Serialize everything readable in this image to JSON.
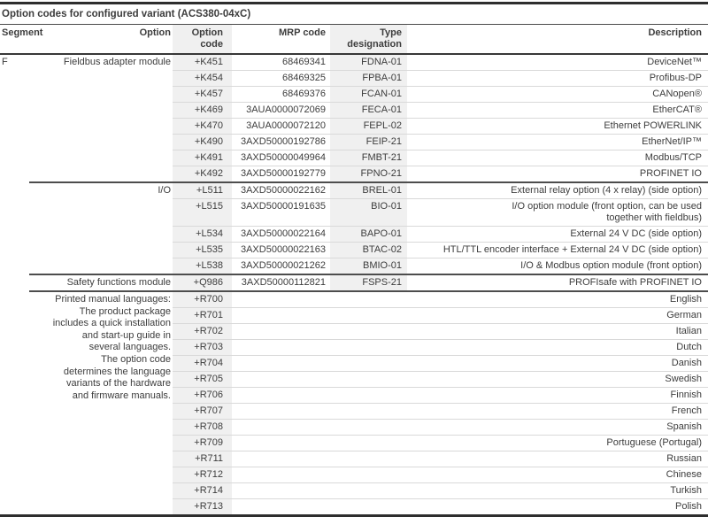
{
  "title": "Option codes for configured variant (ACS380-04xC)",
  "columns": [
    "Segment",
    "Option",
    "Option code",
    "MRP code",
    "Type designation",
    "Description"
  ],
  "sections": [
    {
      "segment": "F",
      "option_lines": [
        "Fieldbus adapter module"
      ],
      "rows": [
        {
          "code": "+K451",
          "mrp": "68469341",
          "type": "FDNA-01",
          "desc": "DeviceNet™"
        },
        {
          "code": "+K454",
          "mrp": "68469325",
          "type": "FPBA-01",
          "desc": "Profibus-DP"
        },
        {
          "code": "+K457",
          "mrp": "68469376",
          "type": "FCAN-01",
          "desc": "CANopen®"
        },
        {
          "code": "+K469",
          "mrp": "3AUA0000072069",
          "type": "FECA-01",
          "desc": "EtherCAT®"
        },
        {
          "code": "+K470",
          "mrp": "3AUA0000072120",
          "type": "FEPL-02",
          "desc": "Ethernet POWERLINK"
        },
        {
          "code": "+K490",
          "mrp": "3AXD50000192786",
          "type": "FEIP-21",
          "desc": "EtherNet/IP™"
        },
        {
          "code": "+K491",
          "mrp": "3AXD50000049964",
          "type": "FMBT-21",
          "desc": "Modbus/TCP"
        },
        {
          "code": "+K492",
          "mrp": "3AXD50000192779",
          "type": "FPNO-21",
          "desc": "PROFINET IO"
        }
      ]
    },
    {
      "segment": "",
      "option_lines": [
        "I/O"
      ],
      "rows": [
        {
          "code": "+L511",
          "mrp": "3AXD50000022162",
          "type": "BREL-01",
          "desc": "External relay option (4 x relay) (side option)"
        },
        {
          "code": "+L515",
          "mrp": "3AXD50000191635",
          "type": "BIO-01",
          "desc": [
            "I/O option module (front option, can be used",
            "together with fieldbus)"
          ]
        },
        {
          "code": "+L534",
          "mrp": "3AXD50000022164",
          "type": "BAPO-01",
          "desc": "External 24 V DC (side option)"
        },
        {
          "code": "+L535",
          "mrp": "3AXD50000022163",
          "type": "BTAC-02",
          "desc": "HTL/TTL encoder interface + External 24 V DC (side option)"
        },
        {
          "code": "+L538",
          "mrp": "3AXD50000021262",
          "type": "BMIO-01",
          "desc": "I/O & Modbus option module (front option)"
        }
      ]
    },
    {
      "segment": "",
      "option_lines": [
        "Safety functions module"
      ],
      "rows": [
        {
          "code": "+Q986",
          "mrp": "3AXD50000112821",
          "type": "FSPS-21",
          "desc": "PROFIsafe with PROFINET IO"
        }
      ]
    },
    {
      "segment": "",
      "option_lines": [
        "Printed manual languages:",
        "The product package includes a quick installation and start-up guide in several languages.",
        "The option code determines the language variants of the hardware and firmware manuals."
      ],
      "rows": [
        {
          "code": "+R700",
          "mrp": "",
          "type": "",
          "desc": "English"
        },
        {
          "code": "+R701",
          "mrp": "",
          "type": "",
          "desc": "German"
        },
        {
          "code": "+R702",
          "mrp": "",
          "type": "",
          "desc": "Italian"
        },
        {
          "code": "+R703",
          "mrp": "",
          "type": "",
          "desc": "Dutch"
        },
        {
          "code": "+R704",
          "mrp": "",
          "type": "",
          "desc": "Danish"
        },
        {
          "code": "+R705",
          "mrp": "",
          "type": "",
          "desc": "Swedish"
        },
        {
          "code": "+R706",
          "mrp": "",
          "type": "",
          "desc": "Finnish"
        },
        {
          "code": "+R707",
          "mrp": "",
          "type": "",
          "desc": "French"
        },
        {
          "code": "+R708",
          "mrp": "",
          "type": "",
          "desc": "Spanish"
        },
        {
          "code": "+R709",
          "mrp": "",
          "type": "",
          "desc": "Portuguese (Portugal)"
        },
        {
          "code": "+R711",
          "mrp": "",
          "type": "",
          "desc": "Russian"
        },
        {
          "code": "+R712",
          "mrp": "",
          "type": "",
          "desc": "Chinese"
        },
        {
          "code": "+R714",
          "mrp": "",
          "type": "",
          "desc": "Turkish"
        },
        {
          "code": "+R713",
          "mrp": "",
          "type": "",
          "desc": "Polish"
        }
      ]
    }
  ]
}
